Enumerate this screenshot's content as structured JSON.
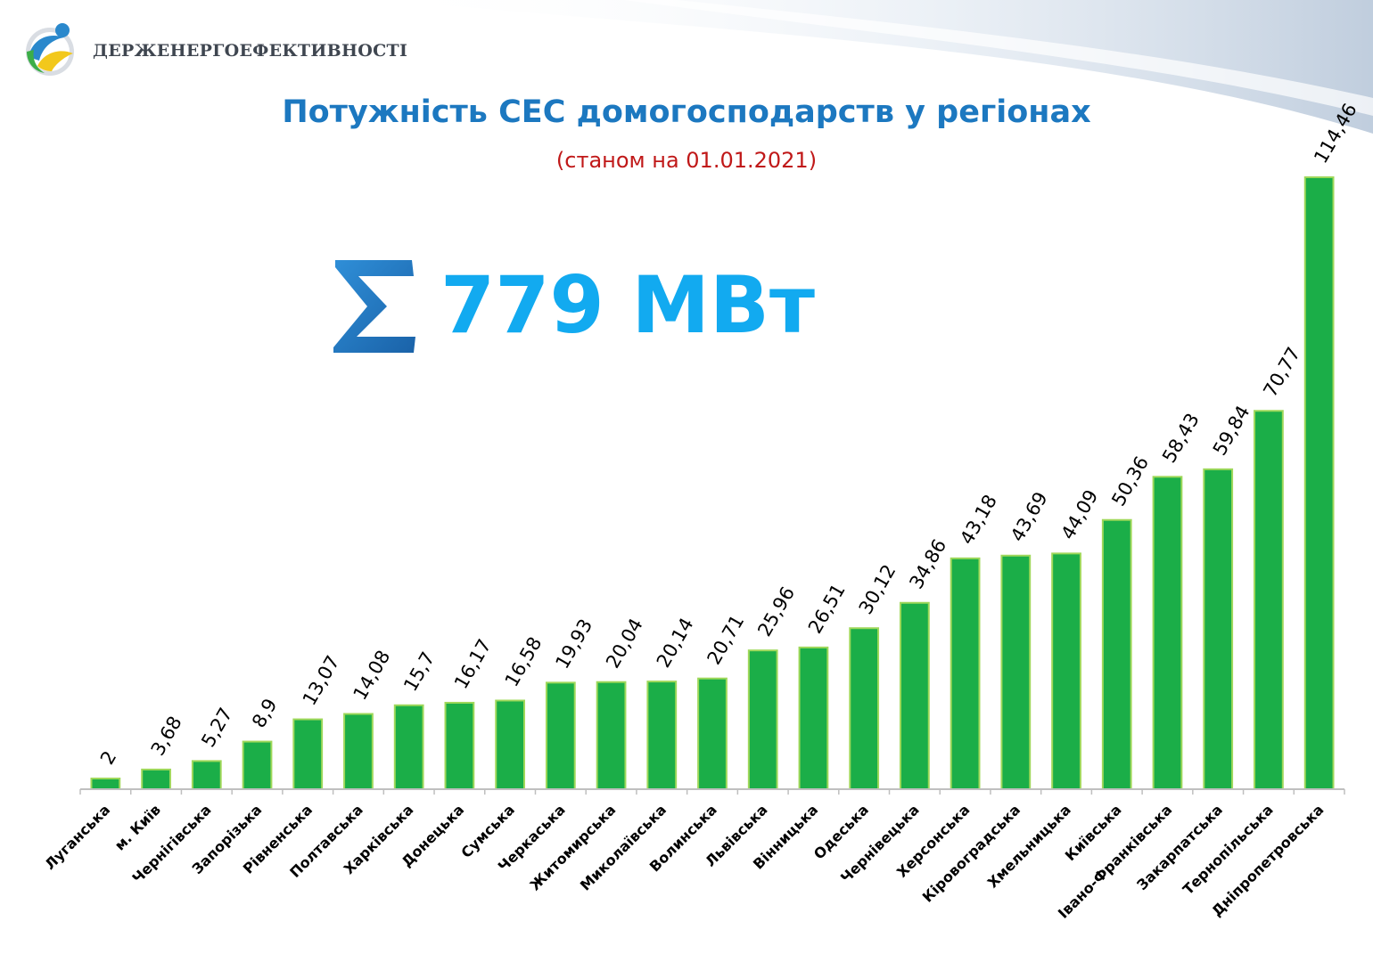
{
  "header": {
    "org_name": "ДЕРЖЕНЕРГОЕФЕКТИВНОСТІ",
    "title": "Потужність СЕС домогосподарств у регіонах",
    "subtitle": "(станом на 01.01.2021)"
  },
  "summary": {
    "total": "779 МВт",
    "sigma_icon": "sigma-icon"
  },
  "colors": {
    "bar": "#1bae48",
    "bar_edge": "#9fd85a",
    "title": "#1c78c0",
    "subtitle": "#c01818",
    "total": "#12aaf0"
  },
  "chart_data": {
    "type": "bar",
    "title": "Потужність СЕС домогосподарств у регіонах",
    "subtitle": "(станом на 01.01.2021)",
    "xlabel": "",
    "ylabel": "",
    "grid": false,
    "legend": "none",
    "ylim": [
      0,
      114.46
    ],
    "categories": [
      "Луганська",
      "м. Київ",
      "Чернігівська",
      "Запорізька",
      "Рівненська",
      "Полтавська",
      "Харківська",
      "Донецька",
      "Сумська",
      "Черкаська",
      "Житомирська",
      "Миколаївська",
      "Волинська",
      "Львівська",
      "Вінницька",
      "Одеська",
      "Чернівецька",
      "Херсонська",
      "Кіровоградська",
      "Хмельницька",
      "Київська",
      "Івано-Франківська",
      "Закарпатська",
      "Тернопільська",
      "Дніпропетровська"
    ],
    "values": [
      2,
      3.68,
      5.27,
      8.9,
      13.07,
      14.08,
      15.7,
      16.17,
      16.58,
      19.93,
      20.04,
      20.14,
      20.71,
      25.96,
      26.51,
      30.12,
      34.86,
      43.18,
      43.69,
      44.09,
      50.36,
      58.43,
      59.84,
      70.77,
      114.46
    ],
    "value_labels": [
      "2",
      "3,68",
      "5,27",
      "8,9",
      "13,07",
      "14,08",
      "15,7",
      "16,17",
      "16,58",
      "19,93",
      "20,04",
      "20,14",
      "20,71",
      "25,96",
      "26,51",
      "30,12",
      "34,86",
      "43,18",
      "43,69",
      "44,09",
      "50,36",
      "58,43",
      "59,84",
      "70,77",
      "114,46"
    ]
  }
}
